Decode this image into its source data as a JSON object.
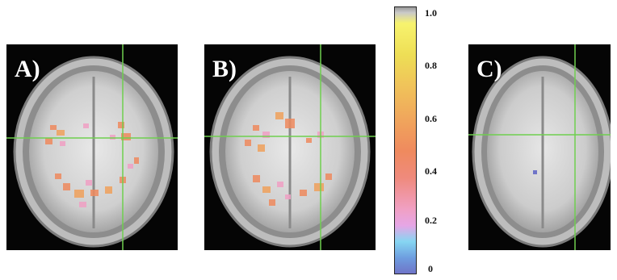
{
  "panels": [
    {
      "label": "A)"
    },
    {
      "label": "B)"
    },
    {
      "label": "C)"
    }
  ],
  "colorbar": {
    "ticks": [
      "1.0",
      "0.8",
      "0.6",
      "0.4",
      "0.2",
      "0"
    ],
    "colors": [
      "#f7f36e",
      "#eede55",
      "#f0a15c",
      "#ef8a5e",
      "#f0a0c4",
      "#86d6f2",
      "#6f74c8"
    ]
  },
  "crosshair_color": "#6fcf4f"
}
